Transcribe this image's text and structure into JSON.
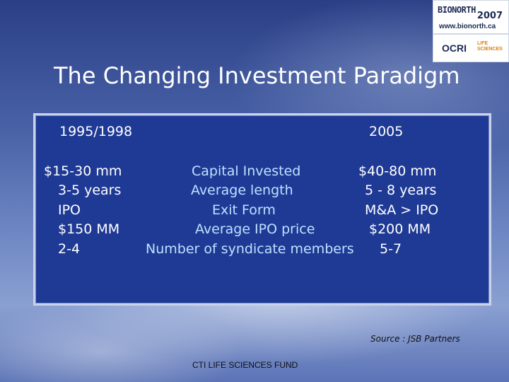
{
  "logo": {
    "brand": "BIONORTH",
    "year": "2007",
    "url": "www.bionorth.ca",
    "partner": "OCRI",
    "partner_sub": "LIFE SCIENCES"
  },
  "title": "The Changing Investment Paradigm",
  "columns": {
    "left_header": "1995/1998",
    "right_header": "2005"
  },
  "rows": [
    {
      "left": "$15-30 mm",
      "label": "Capital Invested",
      "right": "$40-80 mm"
    },
    {
      "left": "3-5 years",
      "label": "Average length",
      "right": "5 - 8 years"
    },
    {
      "left": "IPO",
      "label": "Exit Form",
      "right": "M&A > IPO"
    },
    {
      "left": "$150 MM",
      "label": "Average IPO price",
      "right": "$200 MM"
    },
    {
      "left": "2-4",
      "label": "Number of syndicate members",
      "right": "5-7"
    }
  ],
  "source": "Source : JSB Partners",
  "footer": "CTI LIFE SCIENCES FUND",
  "colors": {
    "panel": "#1f3a95",
    "label": "#bfe0ff",
    "text": "#ffffff"
  }
}
